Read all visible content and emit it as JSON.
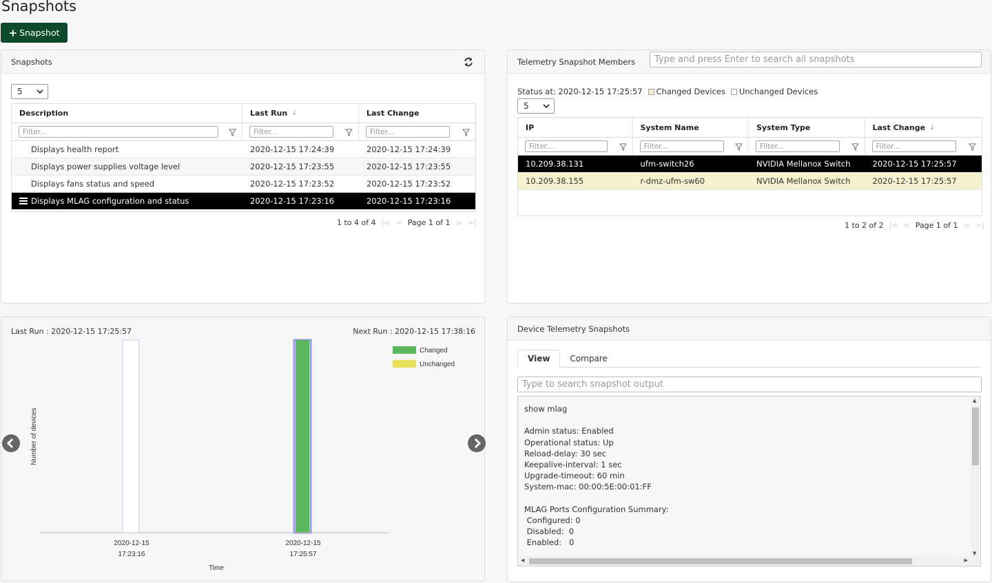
{
  "page": {
    "title": "Snapshots",
    "add_button_label": "Snapshot"
  },
  "snapshots_panel": {
    "title": "Snapshots",
    "page_size": "5",
    "columns": [
      "Description",
      "Last Run",
      "Last Change"
    ],
    "filter_placeholder": "Filter...",
    "rows": [
      {
        "description": "Displays health report",
        "last_run": "2020-12-15 17:24:39",
        "last_change": "2020-12-15 17:24:39"
      },
      {
        "description": "Displays power supplies voltage level",
        "last_run": "2020-12-15 17:23:55",
        "last_change": "2020-12-15 17:23:55"
      },
      {
        "description": "Displays fans status and speed",
        "last_run": "2020-12-15 17:23:52",
        "last_change": "2020-12-15 17:23:52"
      },
      {
        "description": "Displays MLAG configuration and status",
        "last_run": "2020-12-15 17:23:16",
        "last_change": "2020-12-15 17:23:16"
      }
    ],
    "pager": {
      "range": "1 to 4 of 4",
      "page": "Page 1 of 1"
    }
  },
  "members_panel": {
    "title": "Telemetry Snapshot Members",
    "search_placeholder": "Type and press Enter to search all snapshots",
    "status_at": "Status at: 2020-12-15 17:25:57",
    "legend_changed": "Changed Devices",
    "legend_unchanged": "Unchanged Devices",
    "page_size": "5",
    "columns": [
      "IP",
      "System Name",
      "System Type",
      "Last Change"
    ],
    "filter_placeholder": "Filter...",
    "rows": [
      {
        "ip": "10.209.38.131",
        "name": "ufm-switch26",
        "type": "NVIDIA Mellanox Switch",
        "last_change": "2020-12-15 17:25:57"
      },
      {
        "ip": "10.209.38.155",
        "name": "r-dmz-ufm-sw60",
        "type": "NVIDIA Mellanox Switch",
        "last_change": "2020-12-15 17:25:57"
      }
    ],
    "pager": {
      "range": "1 to 2 of 2",
      "page": "Page 1 of 1"
    }
  },
  "chart_panel": {
    "last_run": "Last Run : 2020-12-15 17:25:57",
    "next_run": "Next Run : 2020-12-15 17:38:16"
  },
  "chart_data": {
    "type": "bar",
    "categories": [
      "2020-12-15 17:23:16",
      "2020-12-15 17:25:57"
    ],
    "category_lines": [
      [
        "2020-12-15",
        "17:23:16"
      ],
      [
        "2020-12-15",
        "17:25:57"
      ]
    ],
    "series": [
      {
        "name": "Changed",
        "values": [
          0,
          1
        ],
        "color": "#5cb85c"
      },
      {
        "name": "Unchanged",
        "values": [
          0,
          0
        ],
        "color": "#e6e05a"
      }
    ],
    "xlabel": "Time",
    "ylabel": "Number of devices",
    "ylim": [
      0,
      1
    ],
    "legend_position": "top-right",
    "grid": false
  },
  "device_panel": {
    "title": "Device Telemetry Snapshots",
    "tabs": [
      "View",
      "Compare"
    ],
    "search_placeholder": "Type to search snapshot output",
    "output_lines": [
      "show mlag",
      "",
      "Admin status: Enabled",
      "Operational status: Up",
      "Reload-delay: 30 sec",
      "Keepalive-interval: 1 sec",
      "Upgrade-timeout: 60 min",
      "System-mac: 00:00:5E:00:01:FF",
      "",
      "MLAG Ports Configuration Summary:",
      " Configured: 0",
      " Disabled:  0",
      " Enabled:   0"
    ]
  },
  "colors": {
    "primary_button": "#0d4a2c",
    "selected_row": "#000000",
    "changed_row": "#f5f2d0"
  }
}
